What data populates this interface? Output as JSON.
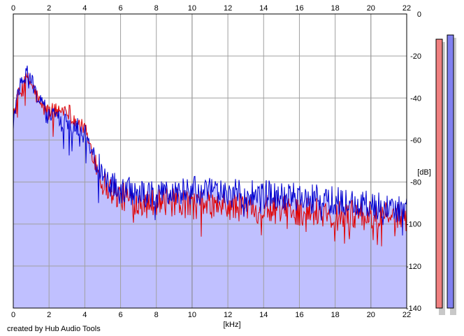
{
  "app": {
    "credit": "created by Hub Audio Tools"
  },
  "colors": {
    "background": "#ffffff",
    "plot_fill": "#c0c0ff",
    "grid": "#a0a0a0",
    "grid_major": "#808080",
    "series_left": "#e00000",
    "series_right": "#0000d0",
    "meter_left": "#f08080",
    "meter_right": "#8080f0",
    "meter_shadow": "#c8c8c8"
  },
  "chart_data": {
    "type": "line",
    "title": "",
    "xlabel": "[kHz]",
    "ylabel": "[dB]",
    "xlim": [
      0,
      22
    ],
    "ylim": [
      -140,
      0
    ],
    "x_ticks": [
      0,
      2,
      4,
      6,
      8,
      10,
      12,
      14,
      16,
      18,
      20,
      22
    ],
    "x_tick_labels_top": [
      "0",
      "2",
      "4",
      "6",
      "8",
      "10",
      "12",
      "14",
      "16",
      "18",
      "20",
      "22"
    ],
    "x_tick_labels_bottom": [
      "0",
      "2",
      "4",
      "6",
      "8",
      "10",
      "12",
      "14",
      "16",
      "18",
      "20",
      "22"
    ],
    "y_ticks": [
      0,
      -20,
      -40,
      -60,
      -80,
      -100,
      -120,
      -140
    ],
    "y_tick_labels": [
      "0",
      "-20",
      "-40",
      "-60",
      "-80",
      "-100",
      "-120",
      "-140"
    ],
    "grid": true,
    "legend": "none",
    "fill_under": true,
    "series": [
      {
        "channel": "left",
        "color": "#e00000",
        "x": [
          0,
          0.25,
          0.5,
          0.75,
          1,
          1.25,
          1.5,
          2,
          2.5,
          3,
          3.5,
          4,
          4.5,
          5,
          5.5,
          6,
          7,
          8,
          9,
          10,
          11,
          12,
          13,
          14,
          15,
          16,
          17,
          18,
          19,
          20,
          21,
          22
        ],
        "values": [
          -50,
          -40,
          -36,
          -31,
          -33,
          -38,
          -43,
          -47,
          -46,
          -45,
          -51,
          -55,
          -68,
          -80,
          -84,
          -87,
          -89,
          -89,
          -90,
          -91,
          -91,
          -92,
          -92,
          -93,
          -93,
          -94,
          -94,
          -95,
          -95,
          -96,
          -96,
          -97
        ]
      },
      {
        "channel": "right",
        "color": "#0000d0",
        "x": [
          0,
          0.25,
          0.5,
          0.75,
          1,
          1.25,
          1.5,
          2,
          2.5,
          3,
          3.5,
          4,
          4.5,
          5,
          5.5,
          6,
          7,
          8,
          9,
          10,
          11,
          12,
          13,
          14,
          15,
          16,
          17,
          18,
          19,
          20,
          21,
          22
        ],
        "values": [
          -52,
          -38,
          -32,
          -28,
          -31,
          -37,
          -42,
          -47,
          -49,
          -52,
          -53,
          -56,
          -67,
          -77,
          -81,
          -84,
          -85,
          -86,
          -85,
          -84,
          -85,
          -85,
          -86,
          -86,
          -87,
          -87,
          -88,
          -89,
          -90,
          -91,
          -92,
          -93
        ]
      }
    ]
  },
  "level_meters": {
    "left_peak_db": -12,
    "right_peak_db": -10
  }
}
